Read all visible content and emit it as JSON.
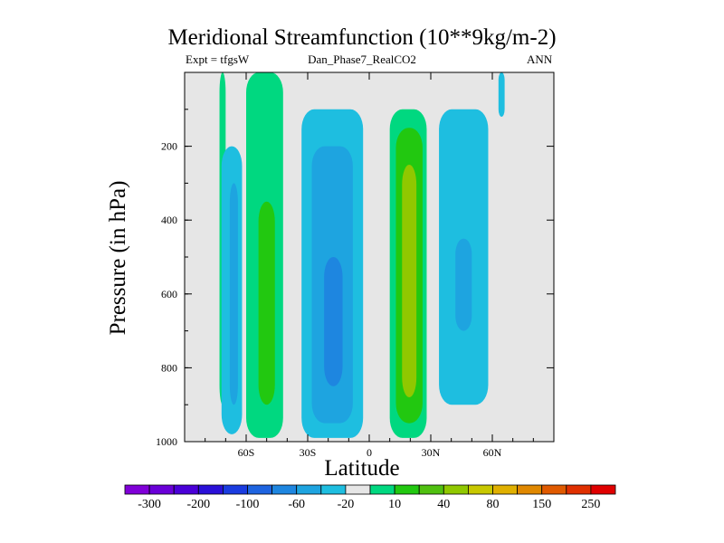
{
  "chart_data": {
    "type": "contour",
    "title": "Meridional Streamfunction (10**9kg/m-2)",
    "left_string": "Expt = tfgsW",
    "center_string": "Dan_Phase7_RealCO2",
    "right_string": "ANN",
    "xlabel": "Latitude",
    "ylabel": "Pressure (in hPa)",
    "xlim": [
      -90,
      90
    ],
    "ylim": [
      1000,
      0
    ],
    "xticks": [
      -60,
      -30,
      0,
      30,
      60
    ],
    "xtick_labels": [
      "60S",
      "30S",
      "0",
      "30N",
      "60N"
    ],
    "yticks": [
      200,
      400,
      600,
      800,
      1000
    ],
    "ytick_labels": [
      "200",
      "400",
      "600",
      "800",
      "1000"
    ],
    "background_color": "#e6e6e6",
    "colorbar": {
      "colors": [
        "#8000d8",
        "#6a00d8",
        "#4a00d8",
        "#2a10d8",
        "#1a3ce0",
        "#1e64e0",
        "#1e86e0",
        "#1ea4e0",
        "#1ebee0",
        "#e6e6e6",
        "#00d880",
        "#22c810",
        "#50c010",
        "#90c800",
        "#c8c800",
        "#e0b000",
        "#e08800",
        "#e05a00",
        "#e03000",
        "#e00000"
      ],
      "labels": [
        "-300",
        "-200",
        "-100",
        "-60",
        "-20",
        "10",
        "40",
        "80",
        "150",
        "250"
      ]
    },
    "cells": [
      {
        "lat_min": -73,
        "lat_max": -70,
        "p_min": 0,
        "p_max": 900,
        "level": 10
      },
      {
        "lat_min": -72,
        "lat_max": -62,
        "p_min": 200,
        "p_max": 980,
        "level": -10
      },
      {
        "lat_min": -68,
        "lat_max": -64,
        "p_min": 300,
        "p_max": 900,
        "level": -20
      },
      {
        "lat_min": -60,
        "lat_max": -42,
        "p_min": 0,
        "p_max": 990,
        "level": 10
      },
      {
        "lat_min": -54,
        "lat_max": -46,
        "p_min": 350,
        "p_max": 900,
        "level": 20
      },
      {
        "lat_min": -33,
        "lat_max": -3,
        "p_min": 100,
        "p_max": 990,
        "level": -10
      },
      {
        "lat_min": -28,
        "lat_max": -8,
        "p_min": 200,
        "p_max": 950,
        "level": -20
      },
      {
        "lat_min": -22,
        "lat_max": -13,
        "p_min": 500,
        "p_max": 850,
        "level": -60
      },
      {
        "lat_min": 10,
        "lat_max": 28,
        "p_min": 100,
        "p_max": 990,
        "level": 10
      },
      {
        "lat_min": 13,
        "lat_max": 26,
        "p_min": 150,
        "p_max": 950,
        "level": 20
      },
      {
        "lat_min": 16,
        "lat_max": 23,
        "p_min": 250,
        "p_max": 880,
        "level": 40
      },
      {
        "lat_min": 34,
        "lat_max": 58,
        "p_min": 100,
        "p_max": 900,
        "level": -10
      },
      {
        "lat_min": 42,
        "lat_max": 50,
        "p_min": 450,
        "p_max": 700,
        "level": -20
      },
      {
        "lat_min": 63,
        "lat_max": 66,
        "p_min": 0,
        "p_max": 120,
        "level": -10
      }
    ]
  }
}
